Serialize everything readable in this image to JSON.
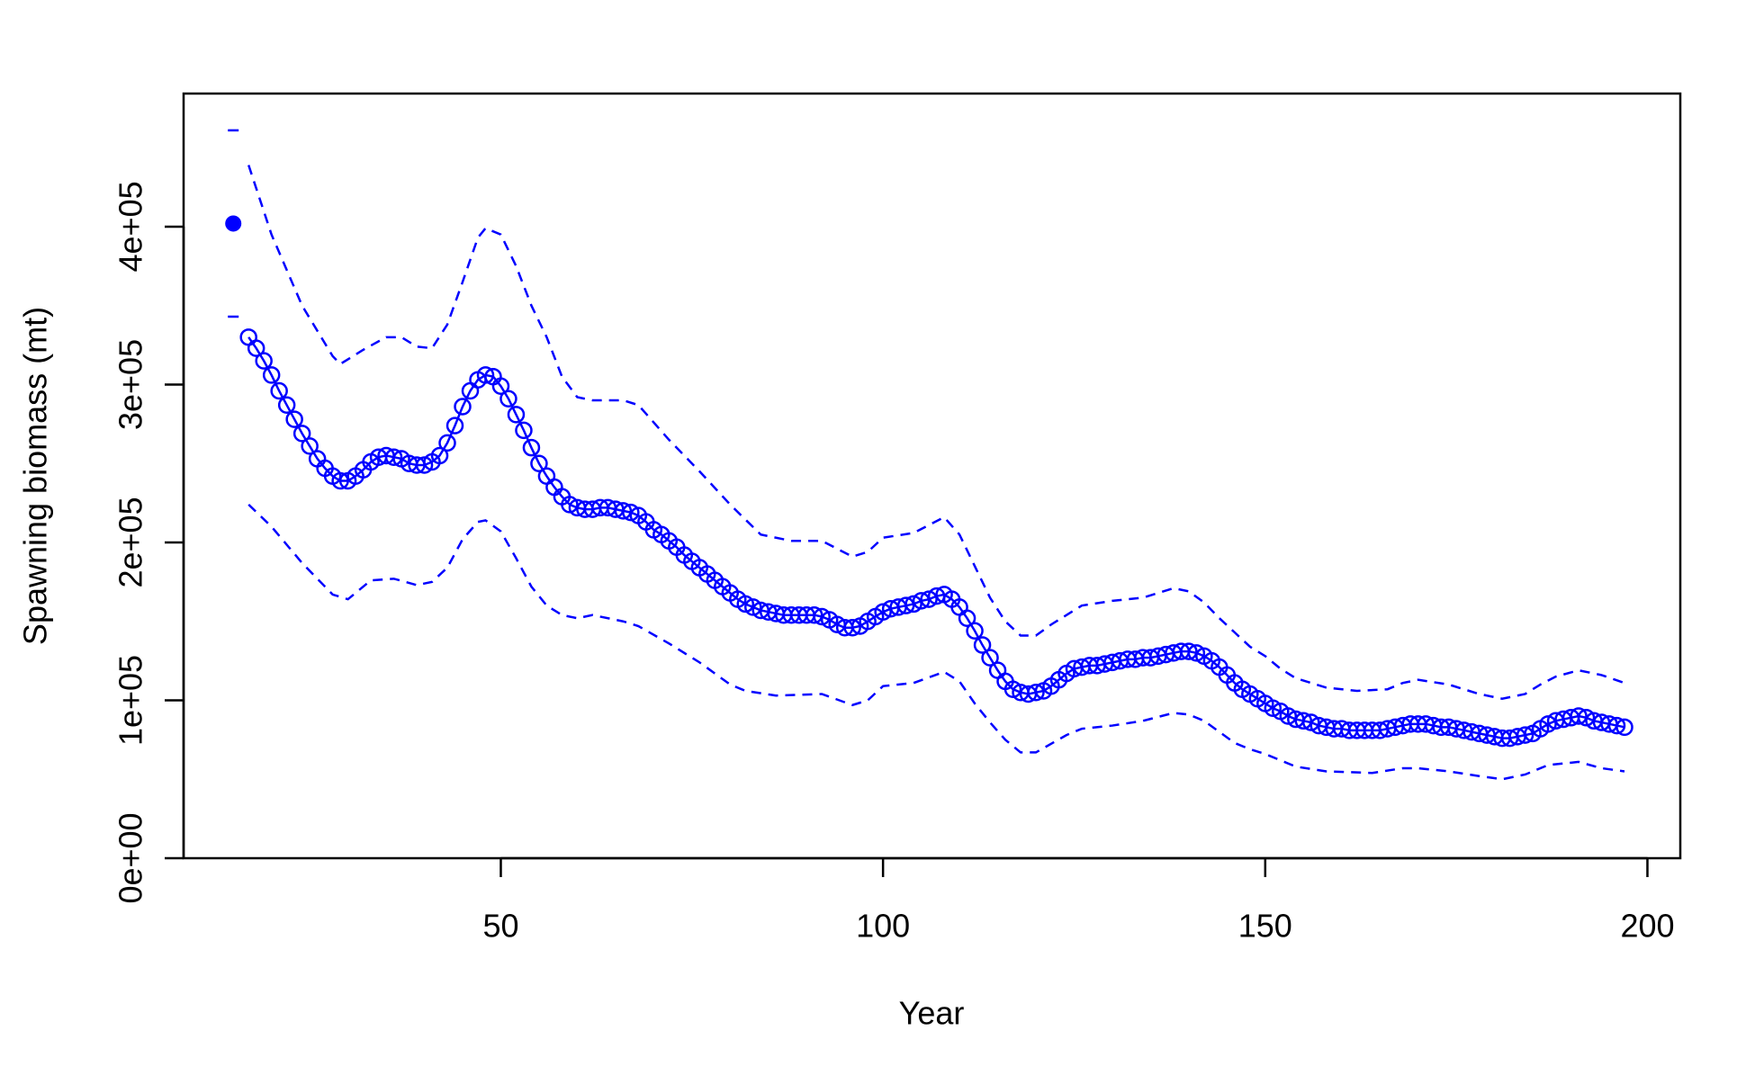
{
  "chart_data": {
    "type": "line",
    "x_label": "Year",
    "y_label": "Spawning biomass (mt)",
    "color": "#0000ff",
    "xlim": [
      8.5,
      204.3
    ],
    "ylim": [
      0,
      484300
    ],
    "xticks": [
      50,
      100,
      150,
      200
    ],
    "yticks": [
      {
        "value": 0,
        "label": "0e+00"
      },
      {
        "value": 100000,
        "label": "1e+05"
      },
      {
        "value": 200000,
        "label": "2e+05"
      },
      {
        "value": 300000,
        "label": "3e+05"
      },
      {
        "value": 400000,
        "label": "4e+05"
      }
    ],
    "virgin": {
      "x": 15,
      "value": 402000,
      "lower": 343000,
      "upper": 461000
    },
    "x": [
      17,
      18,
      19,
      20,
      21,
      22,
      23,
      24,
      25,
      26,
      27,
      28,
      29,
      30,
      31,
      32,
      33,
      34,
      35,
      36,
      37,
      38,
      39,
      40,
      41,
      42,
      43,
      44,
      45,
      46,
      47,
      48,
      49,
      50,
      51,
      52,
      53,
      54,
      55,
      56,
      57,
      58,
      59,
      60,
      61,
      62,
      63,
      64,
      65,
      66,
      67,
      68,
      69,
      70,
      71,
      72,
      73,
      74,
      75,
      76,
      77,
      78,
      79,
      80,
      81,
      82,
      83,
      84,
      85,
      86,
      87,
      88,
      89,
      90,
      91,
      92,
      93,
      94,
      95,
      96,
      97,
      98,
      99,
      100,
      101,
      102,
      103,
      104,
      105,
      106,
      107,
      108,
      109,
      110,
      111,
      112,
      113,
      114,
      115,
      116,
      117,
      118,
      119,
      120,
      121,
      122,
      123,
      124,
      125,
      126,
      127,
      128,
      129,
      130,
      131,
      132,
      133,
      134,
      135,
      136,
      137,
      138,
      139,
      140,
      141,
      142,
      143,
      144,
      145,
      146,
      147,
      148,
      149,
      150,
      151,
      152,
      153,
      154,
      155,
      156,
      157,
      158,
      159,
      160,
      161,
      162,
      163,
      164,
      165,
      166,
      167,
      168,
      169,
      170,
      171,
      172,
      173,
      174,
      175,
      176,
      177,
      178,
      179,
      180,
      181,
      182,
      183,
      184,
      185,
      186,
      187,
      188,
      189,
      190,
      191,
      192,
      193,
      194,
      195,
      196,
      197
    ],
    "values": [
      330000,
      323000,
      315000,
      306000,
      296000,
      287000,
      278000,
      269000,
      261000,
      253000,
      247000,
      242000,
      239000,
      239000,
      242000,
      246000,
      251000,
      254000,
      255000,
      254000,
      253000,
      250000,
      249000,
      249000,
      251000,
      255000,
      263000,
      274000,
      286000,
      296000,
      303000,
      306000,
      305000,
      299000,
      291000,
      281000,
      271000,
      260000,
      250000,
      242000,
      235000,
      229000,
      224000,
      222000,
      221000,
      221000,
      222000,
      222000,
      221000,
      220000,
      219000,
      217000,
      213000,
      208000,
      205000,
      201000,
      197000,
      192000,
      188000,
      184000,
      180000,
      176000,
      172000,
      168000,
      164000,
      161000,
      159000,
      157000,
      156000,
      155000,
      154000,
      154000,
      154000,
      154000,
      154000,
      153000,
      151000,
      148000,
      146000,
      146000,
      147000,
      150000,
      153000,
      156000,
      158000,
      159000,
      160000,
      161000,
      163000,
      164000,
      166000,
      167000,
      164000,
      159000,
      152000,
      144000,
      135000,
      127000,
      119000,
      112000,
      107000,
      105000,
      104000,
      105000,
      106000,
      109000,
      113000,
      117000,
      120000,
      121000,
      122000,
      122000,
      123000,
      124000,
      125000,
      126000,
      126000,
      127000,
      127000,
      128000,
      129000,
      130000,
      131000,
      131000,
      130000,
      128000,
      125000,
      121000,
      116000,
      111000,
      107000,
      104000,
      101000,
      98000,
      95000,
      93000,
      90000,
      88000,
      87000,
      86000,
      84000,
      83000,
      82000,
      82000,
      81000,
      81000,
      81000,
      81000,
      81000,
      82000,
      83000,
      84000,
      85000,
      85000,
      85000,
      84000,
      83000,
      83000,
      82000,
      81000,
      80000,
      79000,
      78000,
      77000,
      76000,
      76000,
      77000,
      78000,
      79000,
      82000,
      85000,
      87000,
      88000,
      89000,
      90000,
      89000,
      87000,
      86000,
      85000,
      84000,
      83000
    ],
    "interval": [
      {
        "x": [
          17,
          20,
          24,
          28,
          29,
          32,
          35,
          37,
          39,
          41,
          43,
          45,
          47,
          48,
          50,
          52,
          54,
          56,
          58,
          60,
          62,
          66,
          68,
          72,
          76,
          80,
          84,
          88,
          92,
          96,
          98,
          100,
          104,
          108,
          110,
          112,
          114,
          116,
          118,
          120,
          122,
          126,
          130,
          134,
          138,
          140,
          142,
          144,
          146,
          148,
          150,
          152,
          154,
          156,
          158,
          162,
          166,
          168,
          170,
          174,
          178,
          181,
          184,
          186,
          188,
          191,
          194,
          197
        ],
        "values": [
          439000,
          395000,
          350000,
          318000,
          313000,
          322000,
          330000,
          330000,
          324000,
          323000,
          338000,
          365000,
          393000,
          399000,
          395000,
          375000,
          350000,
          330000,
          305000,
          292000,
          290000,
          290000,
          287000,
          265000,
          245000,
          224000,
          205000,
          201000,
          201000,
          191000,
          194000,
          203000,
          206000,
          216000,
          205000,
          185000,
          165000,
          150000,
          141000,
          141000,
          148000,
          160000,
          163000,
          165000,
          171000,
          169000,
          162000,
          152000,
          143000,
          134000,
          128000,
          120000,
          114000,
          111000,
          108000,
          106000,
          107000,
          111000,
          113000,
          110000,
          104000,
          101000,
          104000,
          110000,
          115000,
          119000,
          116000,
          111000
        ]
      },
      {
        "x": [
          17,
          20,
          24,
          28,
          30,
          33,
          36,
          39,
          41,
          43,
          45,
          47,
          48,
          50,
          52,
          54,
          56,
          58,
          60,
          62,
          66,
          68,
          72,
          76,
          80,
          82,
          86,
          92,
          96,
          98,
          100,
          104,
          108,
          110,
          112,
          114,
          116,
          118,
          120,
          124,
          126,
          130,
          134,
          138,
          140,
          142,
          144,
          146,
          148,
          150,
          152,
          154,
          158,
          164,
          168,
          170,
          174,
          178,
          181,
          184,
          187,
          191,
          194,
          197
        ],
        "values": [
          224000,
          210000,
          187000,
          167000,
          164000,
          176000,
          177000,
          173000,
          175000,
          184000,
          202000,
          213000,
          214000,
          207000,
          190000,
          172000,
          160000,
          154000,
          152000,
          154000,
          150000,
          147000,
          136000,
          124000,
          110000,
          106000,
          103000,
          104000,
          97000,
          100000,
          109000,
          111000,
          118000,
          112000,
          98000,
          86000,
          75000,
          67000,
          67000,
          78000,
          82000,
          84000,
          87000,
          92000,
          91000,
          87000,
          80000,
          73000,
          69000,
          66000,
          62000,
          58000,
          55000,
          54000,
          57000,
          57000,
          55000,
          52000,
          50000,
          53000,
          59000,
          61000,
          57000,
          55000
        ]
      }
    ]
  }
}
